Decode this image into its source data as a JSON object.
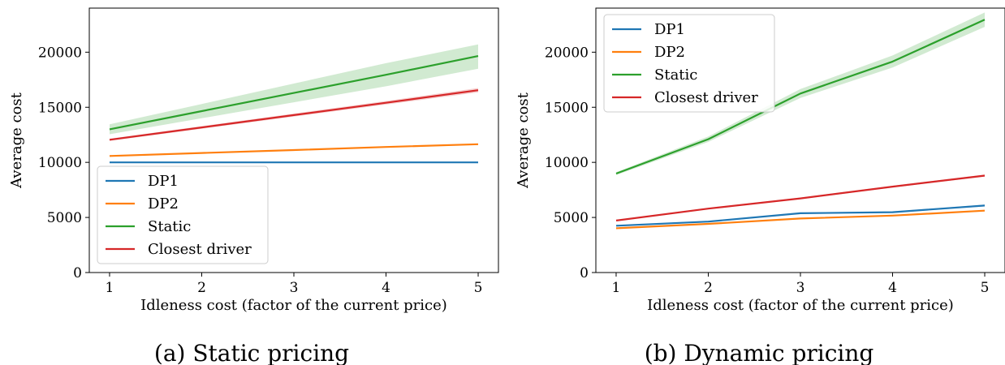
{
  "chart_data": [
    {
      "type": "line",
      "caption": "(a) Static pricing",
      "xlabel": "Idleness cost (factor of the current price)",
      "ylabel": "Average cost",
      "x": [
        1,
        2,
        3,
        4,
        5
      ],
      "xticks": [
        1,
        2,
        3,
        4,
        5
      ],
      "yticks": [
        0,
        5000,
        10000,
        15000,
        20000
      ],
      "xlim": [
        0.78,
        5.22
      ],
      "ylim": [
        0,
        24000
      ],
      "grid": false,
      "legend_position": "lower-left",
      "series": [
        {
          "name": "DP1",
          "color": "#1f77b4",
          "values": [
            10000,
            10000,
            10000,
            10000,
            10000
          ],
          "band": [
            [
              10000,
              10000
            ],
            [
              10000,
              10000
            ],
            [
              10000,
              10000
            ],
            [
              10000,
              10000
            ],
            [
              10000,
              10000
            ]
          ]
        },
        {
          "name": "DP2",
          "color": "#ff7f0e",
          "values": [
            10580,
            10850,
            11120,
            11400,
            11650
          ],
          "band": [
            [
              10580,
              10580
            ],
            [
              10850,
              10850
            ],
            [
              11120,
              11120
            ],
            [
              11400,
              11400
            ],
            [
              11650,
              11650
            ]
          ]
        },
        {
          "name": "Static",
          "color": "#2ca02c",
          "values": [
            13000,
            14650,
            16300,
            17950,
            19650
          ],
          "band": [
            [
              12550,
              13450
            ],
            [
              14000,
              15300
            ],
            [
              15450,
              17150
            ],
            [
              16900,
              19000
            ],
            [
              18500,
              20700
            ]
          ]
        },
        {
          "name": "Closest driver",
          "color": "#d62728",
          "values": [
            12050,
            13170,
            14290,
            15410,
            16550
          ],
          "band": [
            [
              11950,
              12150
            ],
            [
              13050,
              13290
            ],
            [
              14150,
              14430
            ],
            [
              15250,
              15570
            ],
            [
              16350,
              16750
            ]
          ]
        }
      ]
    },
    {
      "type": "line",
      "caption": "(b) Dynamic pricing",
      "xlabel": "Idleness cost (factor of the current price)",
      "ylabel": "Average cost",
      "x": [
        1,
        2,
        3,
        4,
        5
      ],
      "xticks": [
        1,
        2,
        3,
        4,
        5
      ],
      "yticks": [
        0,
        5000,
        10000,
        15000,
        20000
      ],
      "xlim": [
        0.78,
        5.22
      ],
      "ylim": [
        0,
        24000
      ],
      "grid": false,
      "legend_position": "upper-left",
      "series": [
        {
          "name": "DP1",
          "color": "#1f77b4",
          "values": [
            4250,
            4620,
            5380,
            5480,
            6080
          ],
          "band": [
            [
              4200,
              4300
            ],
            [
              4560,
              4680
            ],
            [
              5320,
              5440
            ],
            [
              5420,
              5540
            ],
            [
              6000,
              6160
            ]
          ]
        },
        {
          "name": "DP2",
          "color": "#ff7f0e",
          "values": [
            4020,
            4420,
            4900,
            5170,
            5620
          ],
          "band": [
            [
              3970,
              4070
            ],
            [
              4370,
              4470
            ],
            [
              4850,
              4950
            ],
            [
              5110,
              5230
            ],
            [
              5550,
              5690
            ]
          ]
        },
        {
          "name": "Static",
          "color": "#2ca02c",
          "values": [
            8980,
            12100,
            16250,
            19150,
            22950
          ],
          "band": [
            [
              8850,
              9110
            ],
            [
              11850,
              12350
            ],
            [
              15850,
              16650
            ],
            [
              18600,
              19700
            ],
            [
              22300,
              23600
            ]
          ]
        },
        {
          "name": "Closest driver",
          "color": "#d62728",
          "values": [
            4720,
            5800,
            6730,
            7800,
            8800
          ],
          "band": [
            [
              4670,
              4770
            ],
            [
              5740,
              5860
            ],
            [
              6660,
              6800
            ],
            [
              7720,
              7880
            ],
            [
              8710,
              8890
            ]
          ]
        }
      ]
    }
  ]
}
